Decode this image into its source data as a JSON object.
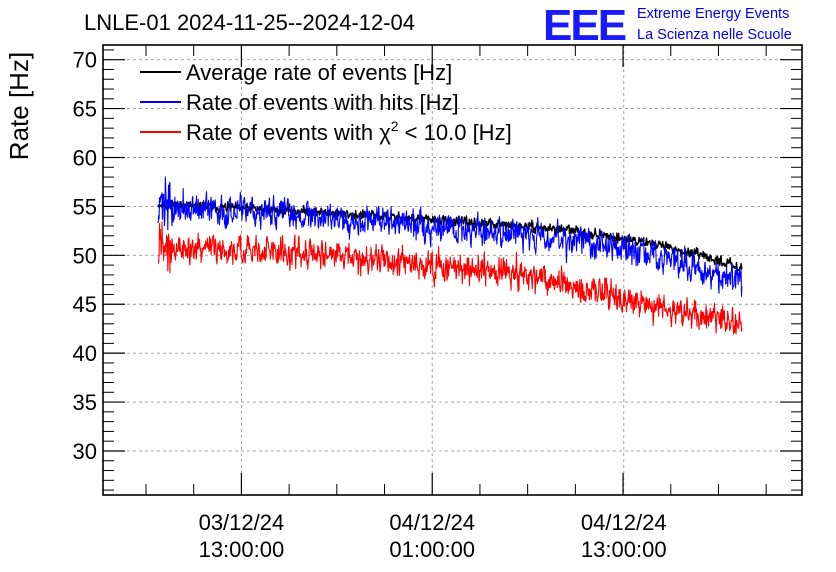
{
  "header": {
    "title": "LNLE-01 2024-11-25--2024-12-04",
    "logo_mark": "EEE",
    "logo_line1": "Extreme Energy Events",
    "logo_line2": "La Scienza nelle Scuole"
  },
  "colors": {
    "average": "#000000",
    "hits": "#0000ff",
    "chi2": "#ff0000",
    "logo": "#0000ee",
    "grid": "#999999"
  },
  "chart_data": {
    "type": "line",
    "ylabel": "Rate [Hz]",
    "xlabel": "",
    "ylim": [
      25.5,
      71.5
    ],
    "yticks": [
      30,
      35,
      40,
      45,
      50,
      55,
      60,
      65,
      70
    ],
    "xlim": [
      0,
      1
    ],
    "xticks": [
      {
        "x": 0.198,
        "line1": "03/12/24",
        "line2": "13:00:00"
      },
      {
        "x": 0.471,
        "line1": "04/12/24",
        "line2": "01:00:00"
      },
      {
        "x": 0.745,
        "line1": "04/12/24",
        "line2": "13:00:00"
      }
    ],
    "grid": true,
    "legend_position": "top-left",
    "series": [
      {
        "key": "average",
        "name_main": "Average rate of events [Hz]",
        "name_sup": "",
        "name_tail": "",
        "x_start": 0.079,
        "x_end": 0.914,
        "knots": [
          [
            0,
            55.2
          ],
          [
            0.25,
            54.5
          ],
          [
            0.5,
            53.5
          ],
          [
            0.7,
            52.6
          ],
          [
            0.85,
            51.2
          ],
          [
            1.0,
            48.8
          ]
        ],
        "noise": 0.35
      },
      {
        "key": "hits",
        "name_main": "Rate of events with hits [Hz]",
        "name_sup": "",
        "name_tail": "",
        "x_start": 0.079,
        "x_end": 0.914,
        "knots": [
          [
            0,
            54.8
          ],
          [
            0.25,
            54.2
          ],
          [
            0.5,
            52.8
          ],
          [
            0.7,
            51.8
          ],
          [
            0.85,
            50.0
          ],
          [
            1.0,
            47.3
          ]
        ],
        "noise": 1.1
      },
      {
        "key": "chi2",
        "name_main": "Rate of events with χ",
        "name_sup": "2",
        "name_tail": " < 10.0 [Hz]",
        "x_start": 0.079,
        "x_end": 0.914,
        "knots": [
          [
            0,
            50.8
          ],
          [
            0.25,
            50.3
          ],
          [
            0.5,
            48.8
          ],
          [
            0.65,
            47.8
          ],
          [
            0.8,
            45.5
          ],
          [
            1.0,
            43.0
          ]
        ],
        "noise": 1.1
      }
    ]
  }
}
